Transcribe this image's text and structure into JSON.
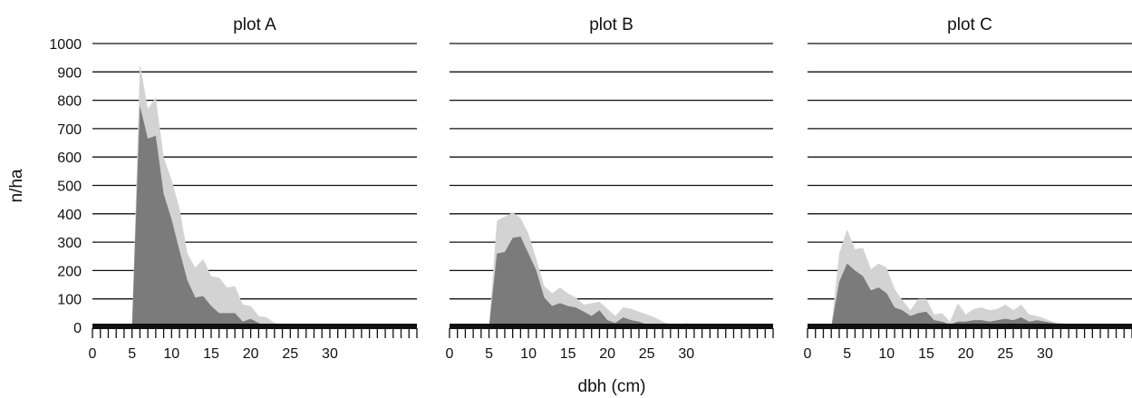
{
  "figure": {
    "ylabel": "n/ha",
    "xlabel": "dbh (cm)",
    "colors": {
      "light": "#d3d3d3",
      "dark": "#7b7b7b",
      "base": "#111111",
      "gridline": "#111111"
    }
  },
  "chart_data": [
    {
      "type": "area",
      "title": "plot A",
      "xlabel": "dbh (cm)",
      "ylabel": "n/ha",
      "ylim": [
        0,
        1000
      ],
      "y_ticks": [
        0,
        100,
        200,
        300,
        400,
        500,
        600,
        700,
        800,
        900,
        1000
      ],
      "x_tick_labels": [
        0,
        5,
        10,
        15,
        20,
        25,
        30
      ],
      "grid": true,
      "x": [
        4,
        5,
        6,
        7,
        8,
        9,
        10,
        11,
        12,
        13,
        14,
        15,
        16,
        17,
        18,
        19,
        20,
        21,
        22,
        23,
        24,
        25,
        26,
        27,
        28,
        29,
        30,
        31,
        32,
        33,
        34,
        35,
        36,
        37,
        38,
        39,
        40
      ],
      "series": [
        {
          "values": [
            0,
            0,
            930,
            770,
            810,
            600,
            520,
            420,
            260,
            210,
            240,
            180,
            175,
            140,
            145,
            80,
            75,
            40,
            35,
            15,
            10,
            8,
            5,
            3,
            2,
            0,
            0,
            0,
            0,
            0,
            0,
            0,
            0,
            0,
            0,
            0,
            0
          ]
        },
        {
          "values": [
            0,
            0,
            780,
            665,
            675,
            470,
            380,
            270,
            165,
            105,
            110,
            75,
            50,
            50,
            50,
            20,
            30,
            15,
            5,
            2,
            0,
            0,
            0,
            0,
            0,
            0,
            0,
            0,
            0,
            0,
            0,
            0,
            0,
            0,
            0,
            0,
            0
          ]
        }
      ]
    },
    {
      "type": "area",
      "title": "plot B",
      "xlabel": "dbh (cm)",
      "ylabel": "n/ha",
      "ylim": [
        0,
        1000
      ],
      "x_tick_labels": [
        0,
        5,
        10,
        15,
        20,
        25,
        30
      ],
      "grid": true,
      "x": [
        4,
        5,
        6,
        7,
        8,
        9,
        10,
        11,
        12,
        13,
        14,
        15,
        16,
        17,
        18,
        19,
        20,
        21,
        22,
        23,
        24,
        25,
        26,
        27,
        28,
        29,
        30,
        31,
        32,
        33,
        34,
        35,
        36,
        37,
        38,
        39,
        40
      ],
      "series": [
        {
          "values": [
            0,
            0,
            375,
            390,
            405,
            385,
            330,
            240,
            145,
            120,
            140,
            120,
            105,
            80,
            85,
            90,
            65,
            40,
            70,
            65,
            55,
            45,
            35,
            20,
            10,
            5,
            15,
            10,
            5,
            0,
            0,
            0,
            0,
            0,
            0,
            0,
            0
          ]
        },
        {
          "values": [
            0,
            0,
            260,
            265,
            315,
            320,
            260,
            200,
            105,
            75,
            85,
            75,
            70,
            55,
            40,
            60,
            25,
            15,
            35,
            25,
            20,
            10,
            5,
            0,
            0,
            0,
            0,
            0,
            0,
            0,
            0,
            0,
            0,
            0,
            0,
            0,
            0
          ]
        }
      ]
    },
    {
      "type": "area",
      "title": "plot C",
      "xlabel": "dbh (cm)",
      "ylabel": "n/ha",
      "ylim": [
        0,
        1000
      ],
      "x_tick_labels": [
        0,
        5,
        10,
        15,
        20,
        25,
        30
      ],
      "grid": true,
      "x": [
        3,
        4,
        5,
        6,
        7,
        8,
        9,
        10,
        11,
        12,
        13,
        14,
        15,
        16,
        17,
        18,
        19,
        20,
        21,
        22,
        23,
        24,
        25,
        26,
        27,
        28,
        29,
        30,
        31,
        32,
        33,
        34,
        35,
        36,
        37,
        38,
        39,
        40
      ],
      "series": [
        {
          "values": [
            0,
            260,
            345,
            275,
            280,
            205,
            225,
            210,
            135,
            95,
            60,
            100,
            100,
            45,
            50,
            20,
            85,
            45,
            65,
            70,
            60,
            65,
            80,
            60,
            80,
            45,
            40,
            30,
            20,
            15,
            10,
            10,
            5,
            5,
            5,
            5,
            5,
            5
          ]
        },
        {
          "values": [
            0,
            160,
            225,
            200,
            180,
            130,
            140,
            120,
            70,
            60,
            40,
            50,
            55,
            25,
            20,
            10,
            20,
            20,
            25,
            25,
            20,
            25,
            30,
            25,
            35,
            20,
            25,
            20,
            15,
            10,
            10,
            5,
            5,
            5,
            5,
            5,
            5,
            5
          ]
        }
      ]
    }
  ]
}
